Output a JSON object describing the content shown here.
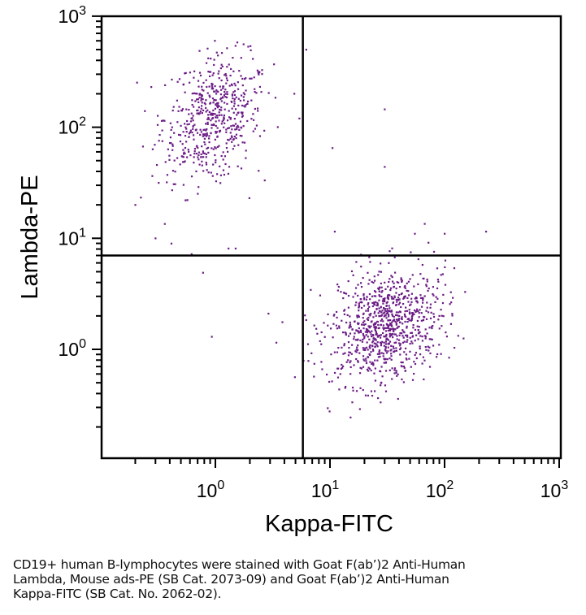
{
  "chart_data": {
    "type": "scatter",
    "title": "",
    "xlabel": "Kappa-FITC",
    "ylabel": "Lambda-PE",
    "xscale": "log",
    "yscale": "log",
    "xlim": [
      0.1,
      1000
    ],
    "ylim": [
      0.1,
      1000
    ],
    "grid": false,
    "x_ticks": [
      {
        "base": "10",
        "exp": "0",
        "value": 1
      },
      {
        "base": "10",
        "exp": "1",
        "value": 10
      },
      {
        "base": "10",
        "exp": "2",
        "value": 100
      },
      {
        "base": "10",
        "exp": "3",
        "value": 1000
      }
    ],
    "y_ticks": [
      {
        "base": "10",
        "exp": "0",
        "value": 1
      },
      {
        "base": "10",
        "exp": "1",
        "value": 10
      },
      {
        "base": "10",
        "exp": "2",
        "value": 100
      },
      {
        "base": "10",
        "exp": "3",
        "value": 1000
      }
    ],
    "quadrant_gates": {
      "x": 5.8,
      "y": 7.0
    },
    "point_color": "#6b1d86",
    "populations": [
      {
        "name": "Lambda+ (upper-left)",
        "center": [
          0.95,
          120
        ],
        "log_sd": [
          0.21,
          0.28
        ],
        "count": 560
      },
      {
        "name": "Kappa+ (lower-right)",
        "center": [
          30,
          1.6
        ],
        "log_sd": [
          0.24,
          0.26
        ],
        "count": 900
      },
      {
        "name": "scattered events",
        "points": [
          [
            0.93,
            1.3
          ],
          [
            2.9,
            2.1
          ],
          [
            3.4,
            1.15
          ],
          [
            0.62,
            7.2
          ],
          [
            0.78,
            4.9
          ],
          [
            0.2,
            20
          ],
          [
            0.3,
            10
          ],
          [
            5.4,
            120
          ],
          [
            6.2,
            500
          ],
          [
            10.5,
            65
          ],
          [
            30,
            145
          ],
          [
            30,
            44
          ],
          [
            11,
            11.5
          ],
          [
            67,
            13.5
          ],
          [
            55,
            11
          ],
          [
            100,
            11
          ],
          [
            230,
            11.5
          ],
          [
            1.3,
            8.1
          ],
          [
            1.5,
            8.1
          ]
        ]
      }
    ]
  },
  "caption": {
    "lines": [
      "CD19+ human B-lymphocytes were stained with Goat F(ab’)2 Anti-Human",
      "Lambda, Mouse ads-PE (SB Cat. 2073-09) and Goat F(ab’)2 Anti-Human",
      "Kappa-FITC (SB Cat. No. 2062-02)."
    ]
  }
}
